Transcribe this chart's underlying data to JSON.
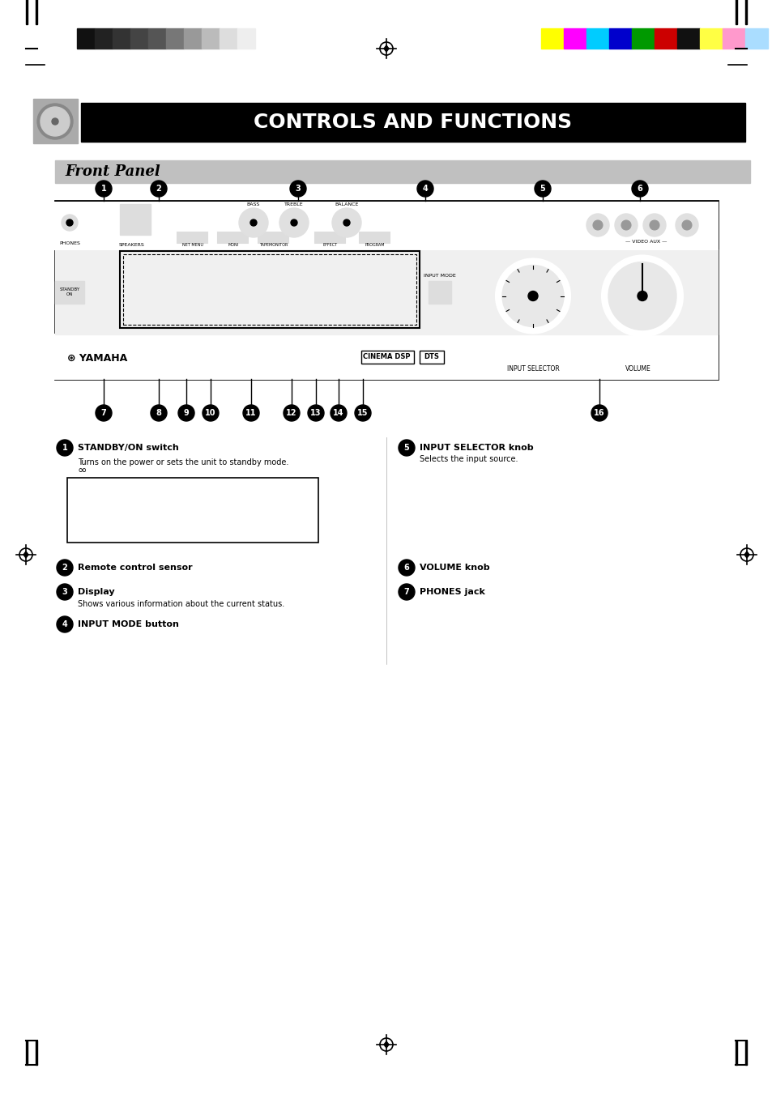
{
  "title": "CONTROLS AND FUNCTIONS",
  "subtitle": "Front Panel",
  "bg_color": "#ffffff",
  "title_bg": "#000000",
  "title_color": "#ffffff",
  "subtitle_bg": "#c0c0c0",
  "subtitle_color": "#000000",
  "page_margin_color": "#000000",
  "grayscale_bars": [
    "#111111",
    "#222222",
    "#333333",
    "#444444",
    "#555555",
    "#777777",
    "#999999",
    "#bbbbbb",
    "#dddddd",
    "#eeeeee"
  ],
  "color_bars": [
    "#ffff00",
    "#ff00ff",
    "#00ccff",
    "#0000cc",
    "#009900",
    "#cc0000",
    "#111111",
    "#ffff44",
    "#ff99cc",
    "#aaddff"
  ],
  "numbered_labels": [
    "1",
    "2",
    "3",
    "4",
    "5",
    "6",
    "7",
    "8",
    "9",
    "10",
    "11",
    "12",
    "13",
    "14",
    "15",
    "16"
  ],
  "text_annotations": {
    "label1": "STANDBY/ON",
    "label2": "Remote sensor",
    "label3": "Display",
    "label4": "INPUT MODE",
    "label5": "INPUT SELECTOR",
    "label6": "VOLUME",
    "label7": "PHONES",
    "label8": "SPEAKERS",
    "label9": "NET MENU",
    "label10": "TREBLE",
    "label11": "BASS",
    "label12": "BALANCE",
    "label13": "PROGRAM",
    "label14": "EFFECT",
    "label15": "MONI",
    "label16": "VIDEO AUX"
  }
}
